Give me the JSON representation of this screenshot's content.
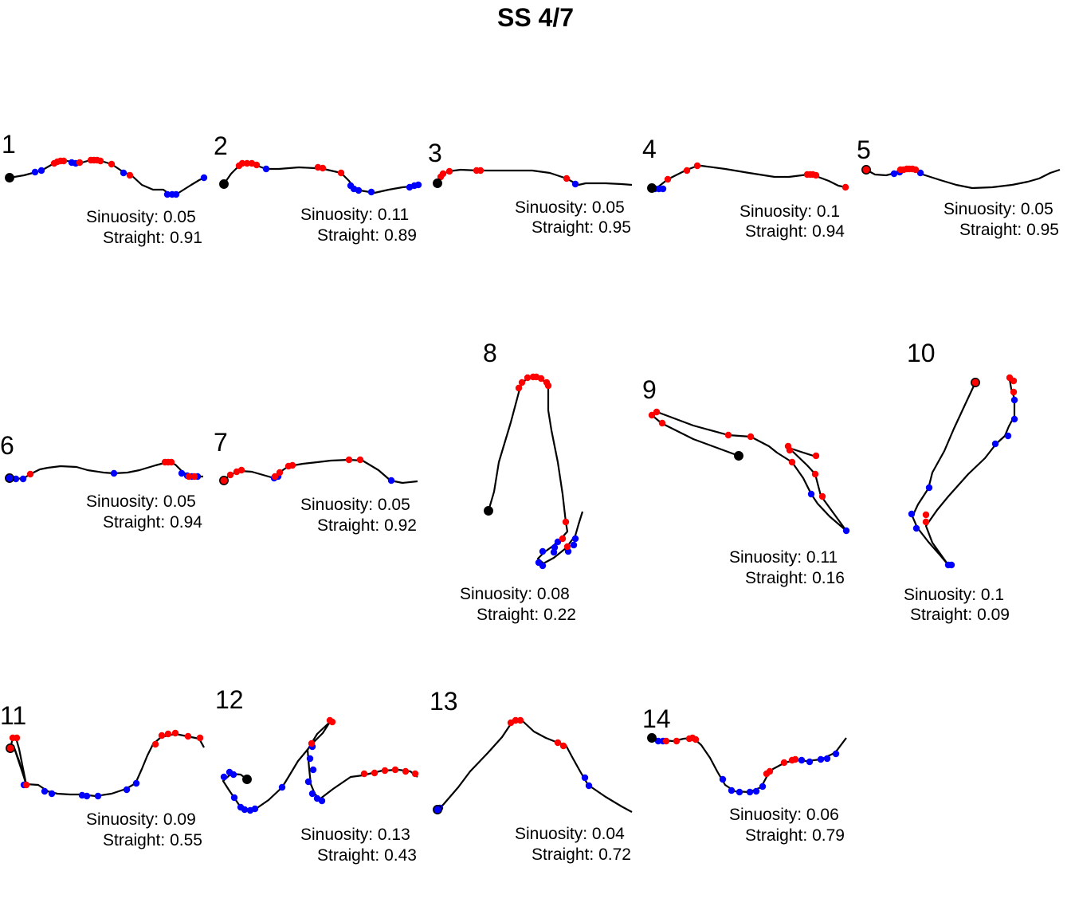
{
  "title": "SS 4/7",
  "colors": {
    "path": "#000000",
    "start": "#000000",
    "red": "#ff0000",
    "blue": "#0000ff"
  },
  "labels": {
    "sinuosity": "Sinuosity:",
    "straight": "Straight:"
  },
  "chart_data": {
    "type": "trajectory-grid",
    "panels": [
      {
        "id": "1",
        "sinuosity": "0.05",
        "straight": "0.91"
      },
      {
        "id": "2",
        "sinuosity": "0.11",
        "straight": "0.89"
      },
      {
        "id": "3",
        "sinuosity": "0.05",
        "straight": "0.95"
      },
      {
        "id": "4",
        "sinuosity": "0.1",
        "straight": "0.94"
      },
      {
        "id": "5",
        "sinuosity": "0.05",
        "straight": "0.95"
      },
      {
        "id": "6",
        "sinuosity": "0.05",
        "straight": "0.94"
      },
      {
        "id": "7",
        "sinuosity": "0.05",
        "straight": "0.92"
      },
      {
        "id": "8",
        "sinuosity": "0.08",
        "straight": "0.22"
      },
      {
        "id": "9",
        "sinuosity": "0.11",
        "straight": "0.16"
      },
      {
        "id": "10",
        "sinuosity": "0.1",
        "straight": "0.09"
      },
      {
        "id": "11",
        "sinuosity": "0.09",
        "straight": "0.55"
      },
      {
        "id": "12",
        "sinuosity": "0.13",
        "straight": "0.43"
      },
      {
        "id": "13",
        "sinuosity": "0.04",
        "straight": "0.72"
      },
      {
        "id": "14",
        "sinuosity": "0.06",
        "straight": "0.79"
      }
    ]
  }
}
